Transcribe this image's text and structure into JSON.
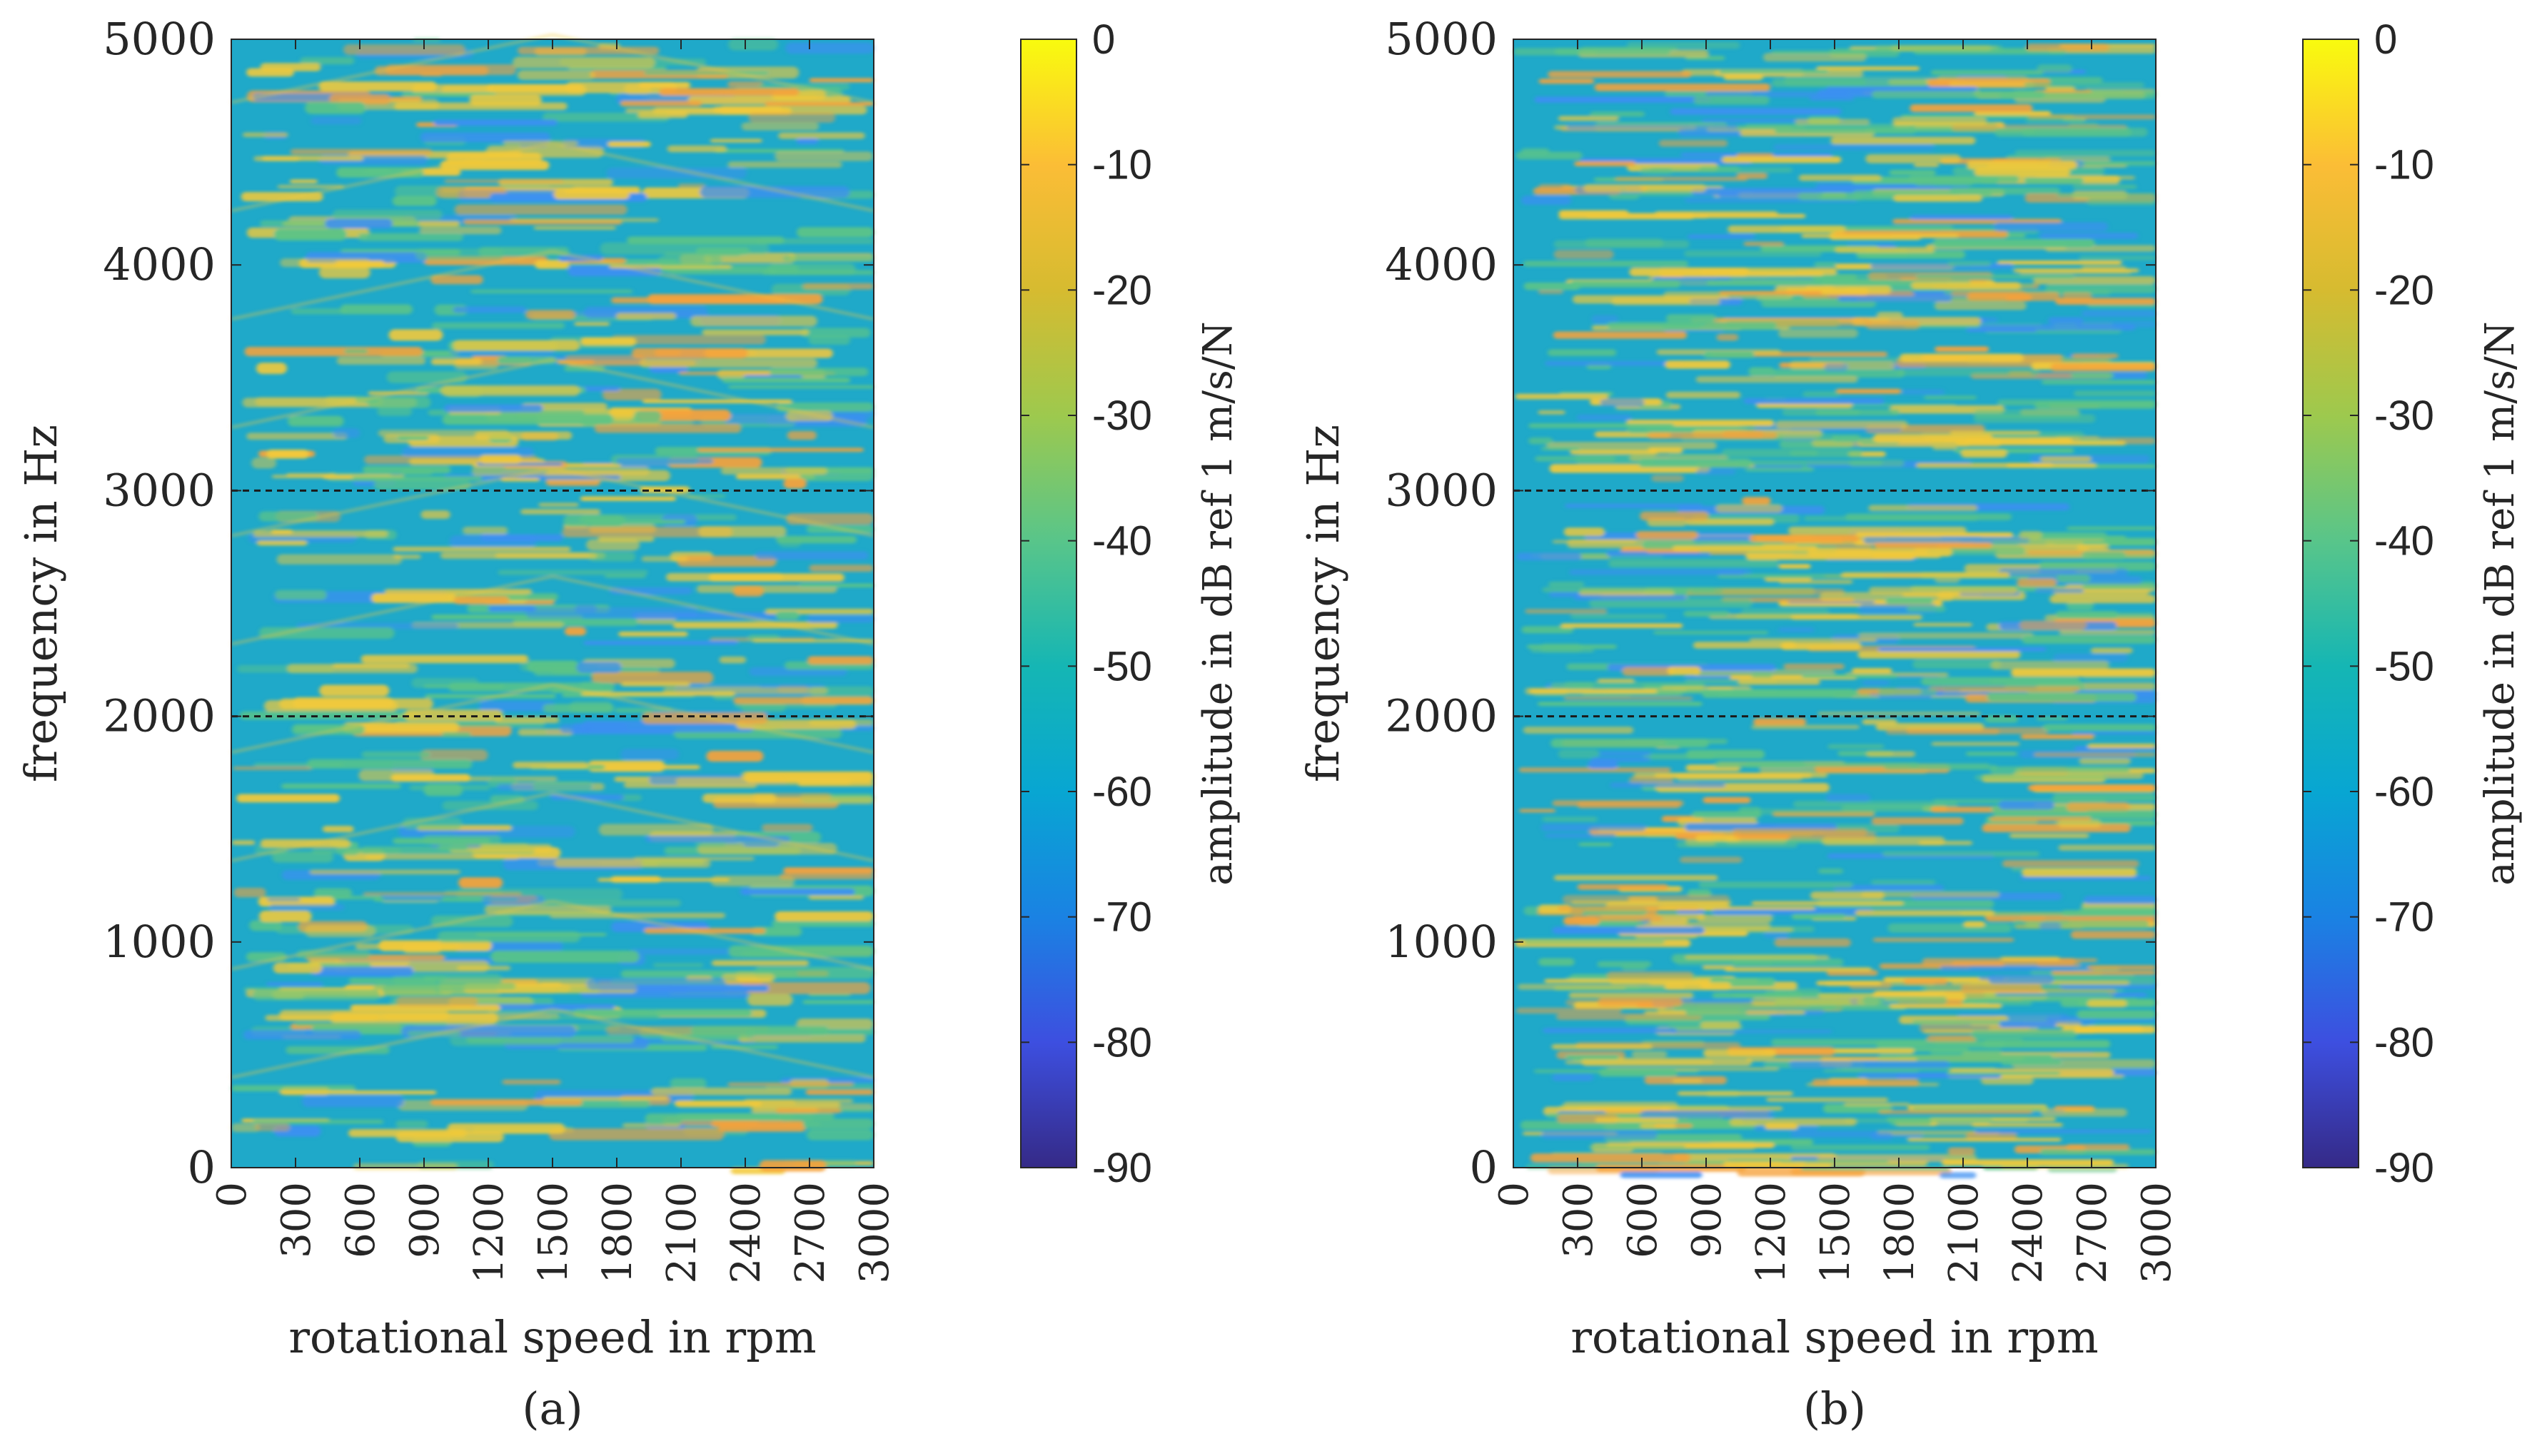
{
  "chart_data": [
    {
      "type": "heatmap",
      "panel_label": "(a)",
      "xlabel": "rotational speed in rpm",
      "ylabel": "frequency in Hz",
      "x_ticks": [
        0,
        300,
        600,
        900,
        1200,
        1500,
        1800,
        2100,
        2400,
        2700,
        3000
      ],
      "y_ticks": [
        0,
        1000,
        2000,
        3000,
        4000,
        5000
      ],
      "xlim": [
        0,
        3000
      ],
      "ylim": [
        0,
        5000
      ],
      "reference_lines_hz": [
        2000,
        3000
      ],
      "colorbar": {
        "label": "amplitude in dB ref 1 m/s/N",
        "ticks": [
          0,
          -10,
          -20,
          -30,
          -40,
          -50,
          -60,
          -70,
          -80,
          -90
        ],
        "range": [
          -90,
          0
        ]
      }
    },
    {
      "type": "heatmap",
      "panel_label": "(b)",
      "xlabel": "rotational speed in rpm",
      "ylabel": "frequency in Hz",
      "x_ticks": [
        0,
        300,
        600,
        900,
        1200,
        1500,
        1800,
        2100,
        2400,
        2700,
        3000
      ],
      "y_ticks": [
        0,
        1000,
        2000,
        3000,
        4000,
        5000
      ],
      "xlim": [
        0,
        3000
      ],
      "ylim": [
        0,
        5000
      ],
      "reference_lines_hz": [
        2000,
        3000
      ],
      "colorbar": {
        "label": "amplitude in dB ref 1 m/s/N",
        "ticks": [
          0,
          -10,
          -20,
          -30,
          -40,
          -50,
          -60,
          -70,
          -80,
          -90
        ],
        "range": [
          -90,
          0
        ]
      }
    }
  ],
  "colors": {
    "background_field": "#1fa9c9",
    "band_yellow": "#f2c93a",
    "band_orange": "#f6a23b",
    "band_green": "#5cc487",
    "band_blue": "#3d8ff2",
    "reference_line": "#1a1a1a",
    "colormap": [
      "#352a87",
      "#3d4fe0",
      "#1a82e3",
      "#08a6d2",
      "#15b6b4",
      "#58c58a",
      "#9dc94e",
      "#d6bb30",
      "#fbbd36",
      "#f9fb0e"
    ]
  }
}
